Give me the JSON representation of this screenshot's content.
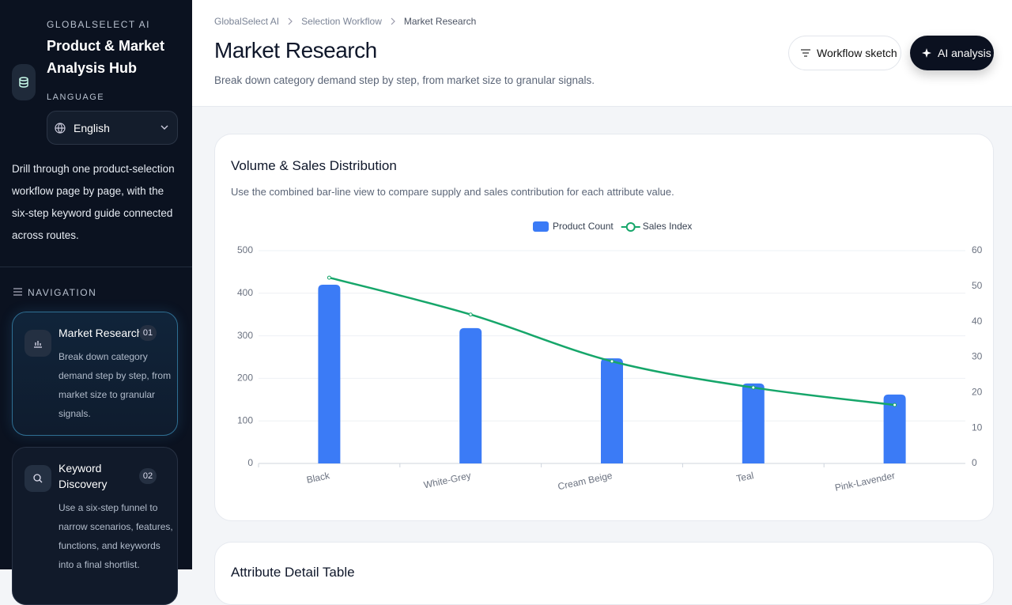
{
  "sidebar": {
    "brand": "GLOBALSELECT AI",
    "title": "Product & Market Analysis Hub",
    "language_label": "LANGUAGE",
    "language": "English",
    "description": "Drill through one product-selection workflow page by page, with the six-step keyword guide connected across routes.",
    "nav_label": "NAVIGATION",
    "nav": [
      {
        "title": "Market Research",
        "badge": "01",
        "description": "Break down category demand step by step, from market size to granular signals."
      },
      {
        "title": "Keyword Discovery",
        "badge": "02",
        "description": "Use a six-step funnel to narrow scenarios, features, functions, and keywords into a final shortlist."
      }
    ]
  },
  "header": {
    "breadcrumbs": [
      "GlobalSelect AI",
      "Selection Workflow",
      "Market Research"
    ],
    "title": "Market Research",
    "subtitle": "Break down category demand step by step, from market size to granular signals.",
    "buttons": [
      "Workflow sketch",
      "AI analysis"
    ]
  },
  "card": {
    "title": "Volume & Sales Distribution",
    "description": "Use the combined bar-line view to compare supply and sales contribution for each attribute value."
  },
  "next_card": {
    "title": "Attribute Detail Table"
  },
  "chart_data": {
    "type": "combo",
    "categories": [
      "Black",
      "White-Grey",
      "Cream Beige",
      "Teal",
      "Pink-Lavender"
    ],
    "series": [
      {
        "name": "Product Count",
        "type": "bar",
        "color": "#3b7bf6",
        "values": [
          420,
          318,
          247,
          188,
          162
        ]
      },
      {
        "name": "Sales Index",
        "type": "line",
        "color": "#16a66a",
        "axis": "y2",
        "values": [
          52.4,
          42,
          28.8,
          21.4,
          16.5
        ]
      }
    ],
    "ylim": [
      0,
      500
    ],
    "yticks": [
      0,
      100,
      200,
      300,
      400,
      500
    ],
    "y2lim": [
      0,
      60
    ],
    "y2ticks": [
      0,
      10,
      20,
      30,
      40,
      50,
      60
    ],
    "grid": true,
    "legend": "top"
  }
}
